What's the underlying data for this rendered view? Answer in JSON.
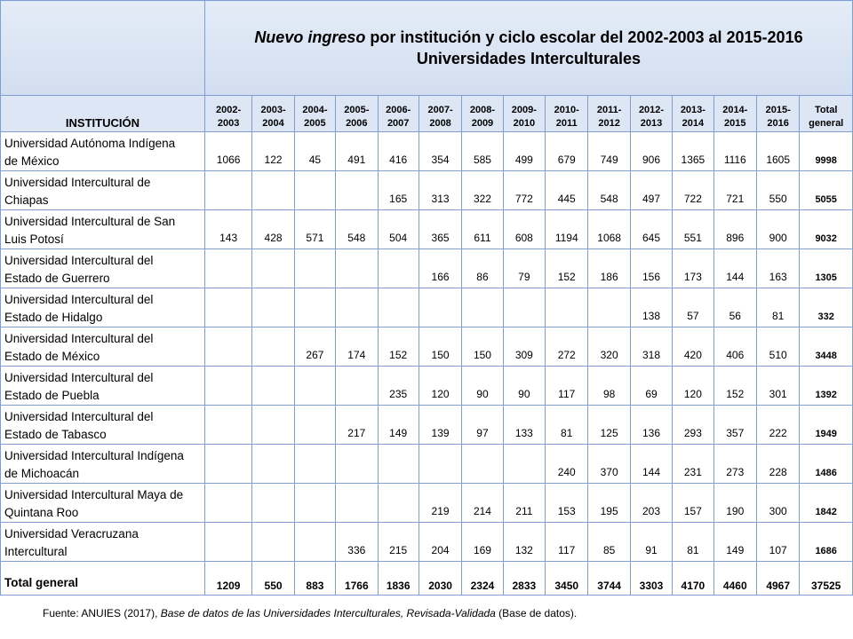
{
  "title": {
    "italic_part": "Nuevo ingreso",
    "rest": " por institución  y ciclo escolar del  2002-2003 al 2015-2016",
    "subtitle": "Universidades Interculturales"
  },
  "header": {
    "institution": "INSTITUCIÓN",
    "years": [
      [
        "2002-",
        "2003"
      ],
      [
        "2003-",
        "2004"
      ],
      [
        "2004-",
        "2005"
      ],
      [
        "2005-",
        "2006"
      ],
      [
        "2006-",
        "2007"
      ],
      [
        "2007-",
        "2008"
      ],
      [
        "2008-",
        "2009"
      ],
      [
        "2009-",
        "2010"
      ],
      [
        "2010-",
        "2011"
      ],
      [
        "2011-",
        "2012"
      ],
      [
        "2012-",
        "2013"
      ],
      [
        "2013-",
        "2014"
      ],
      [
        "2014-",
        "2015"
      ],
      [
        "2015-",
        "2016"
      ]
    ],
    "total": [
      "Total",
      "general"
    ]
  },
  "rows": [
    {
      "name": [
        "Universidad Autónoma  Indígena",
        "de México"
      ],
      "values": [
        "1066",
        "122",
        "45",
        "491",
        "416",
        "354",
        "585",
        "499",
        "679",
        "749",
        "906",
        "1365",
        "1116",
        "1605"
      ],
      "total": "9998"
    },
    {
      "name": [
        "Universidad Intercultural de",
        "Chiapas"
      ],
      "values": [
        "",
        "",
        "",
        "",
        "165",
        "313",
        "322",
        "772",
        "445",
        "548",
        "497",
        "722",
        "721",
        "550"
      ],
      "total": "5055"
    },
    {
      "name": [
        "Universidad Intercultural de San",
        "Luis Potosí"
      ],
      "values": [
        "143",
        "428",
        "571",
        "548",
        "504",
        "365",
        "611",
        "608",
        "1194",
        "1068",
        "645",
        "551",
        "896",
        "900"
      ],
      "total": "9032"
    },
    {
      "name": [
        "Universidad Intercultural del",
        "Estado de Guerrero"
      ],
      "values": [
        "",
        "",
        "",
        "",
        "",
        "166",
        "86",
        "79",
        "152",
        "186",
        "156",
        "173",
        "144",
        "163"
      ],
      "total": "1305"
    },
    {
      "name": [
        "Universidad Intercultural del",
        "Estado de Hidalgo"
      ],
      "values": [
        "",
        "",
        "",
        "",
        "",
        "",
        "",
        "",
        "",
        "",
        "138",
        "57",
        "56",
        "81"
      ],
      "total": "332"
    },
    {
      "name": [
        "Universidad Intercultural del",
        "Estado de México"
      ],
      "values": [
        "",
        "",
        "267",
        "174",
        "152",
        "150",
        "150",
        "309",
        "272",
        "320",
        "318",
        "420",
        "406",
        "510"
      ],
      "total": "3448"
    },
    {
      "name": [
        "Universidad Intercultural del",
        "Estado de Puebla"
      ],
      "values": [
        "",
        "",
        "",
        "",
        "235",
        "120",
        "90",
        "90",
        "117",
        "98",
        "69",
        "120",
        "152",
        "301"
      ],
      "total": "1392"
    },
    {
      "name": [
        "Universidad Intercultural del",
        "Estado de Tabasco"
      ],
      "values": [
        "",
        "",
        "",
        "217",
        "149",
        "139",
        "97",
        "133",
        "81",
        "125",
        "136",
        "293",
        "357",
        "222"
      ],
      "total": "1949"
    },
    {
      "name": [
        "Universidad Intercultural Indígena",
        "de Michoacán"
      ],
      "values": [
        "",
        "",
        "",
        "",
        "",
        "",
        "",
        "",
        "240",
        "370",
        "144",
        "231",
        "273",
        "228"
      ],
      "total": "1486"
    },
    {
      "name": [
        "Universidad Intercultural Maya de",
        "Quintana Roo"
      ],
      "values": [
        "",
        "",
        "",
        "",
        "",
        "219",
        "214",
        "211",
        "153",
        "195",
        "203",
        "157",
        "190",
        "300"
      ],
      "total": "1842"
    },
    {
      "name": [
        "Universidad Veracruzana",
        "Intercultural"
      ],
      "values": [
        "",
        "",
        "",
        "336",
        "215",
        "204",
        "169",
        "132",
        "117",
        "85",
        "91",
        "81",
        "149",
        "107"
      ],
      "total": "1686"
    }
  ],
  "totals": {
    "label": "Total general",
    "values": [
      "1209",
      "550",
      "883",
      "1766",
      "1836",
      "2030",
      "2324",
      "2833",
      "3450",
      "3744",
      "3303",
      "4170",
      "4460",
      "4967"
    ],
    "total": "37525"
  },
  "source": {
    "prefix": "Fuente: ANUIES (2017),  ",
    "italic": "Base de datos de las Universidades  Interculturales, Revisada-Validada",
    "suffix": "  (Base de datos)."
  }
}
